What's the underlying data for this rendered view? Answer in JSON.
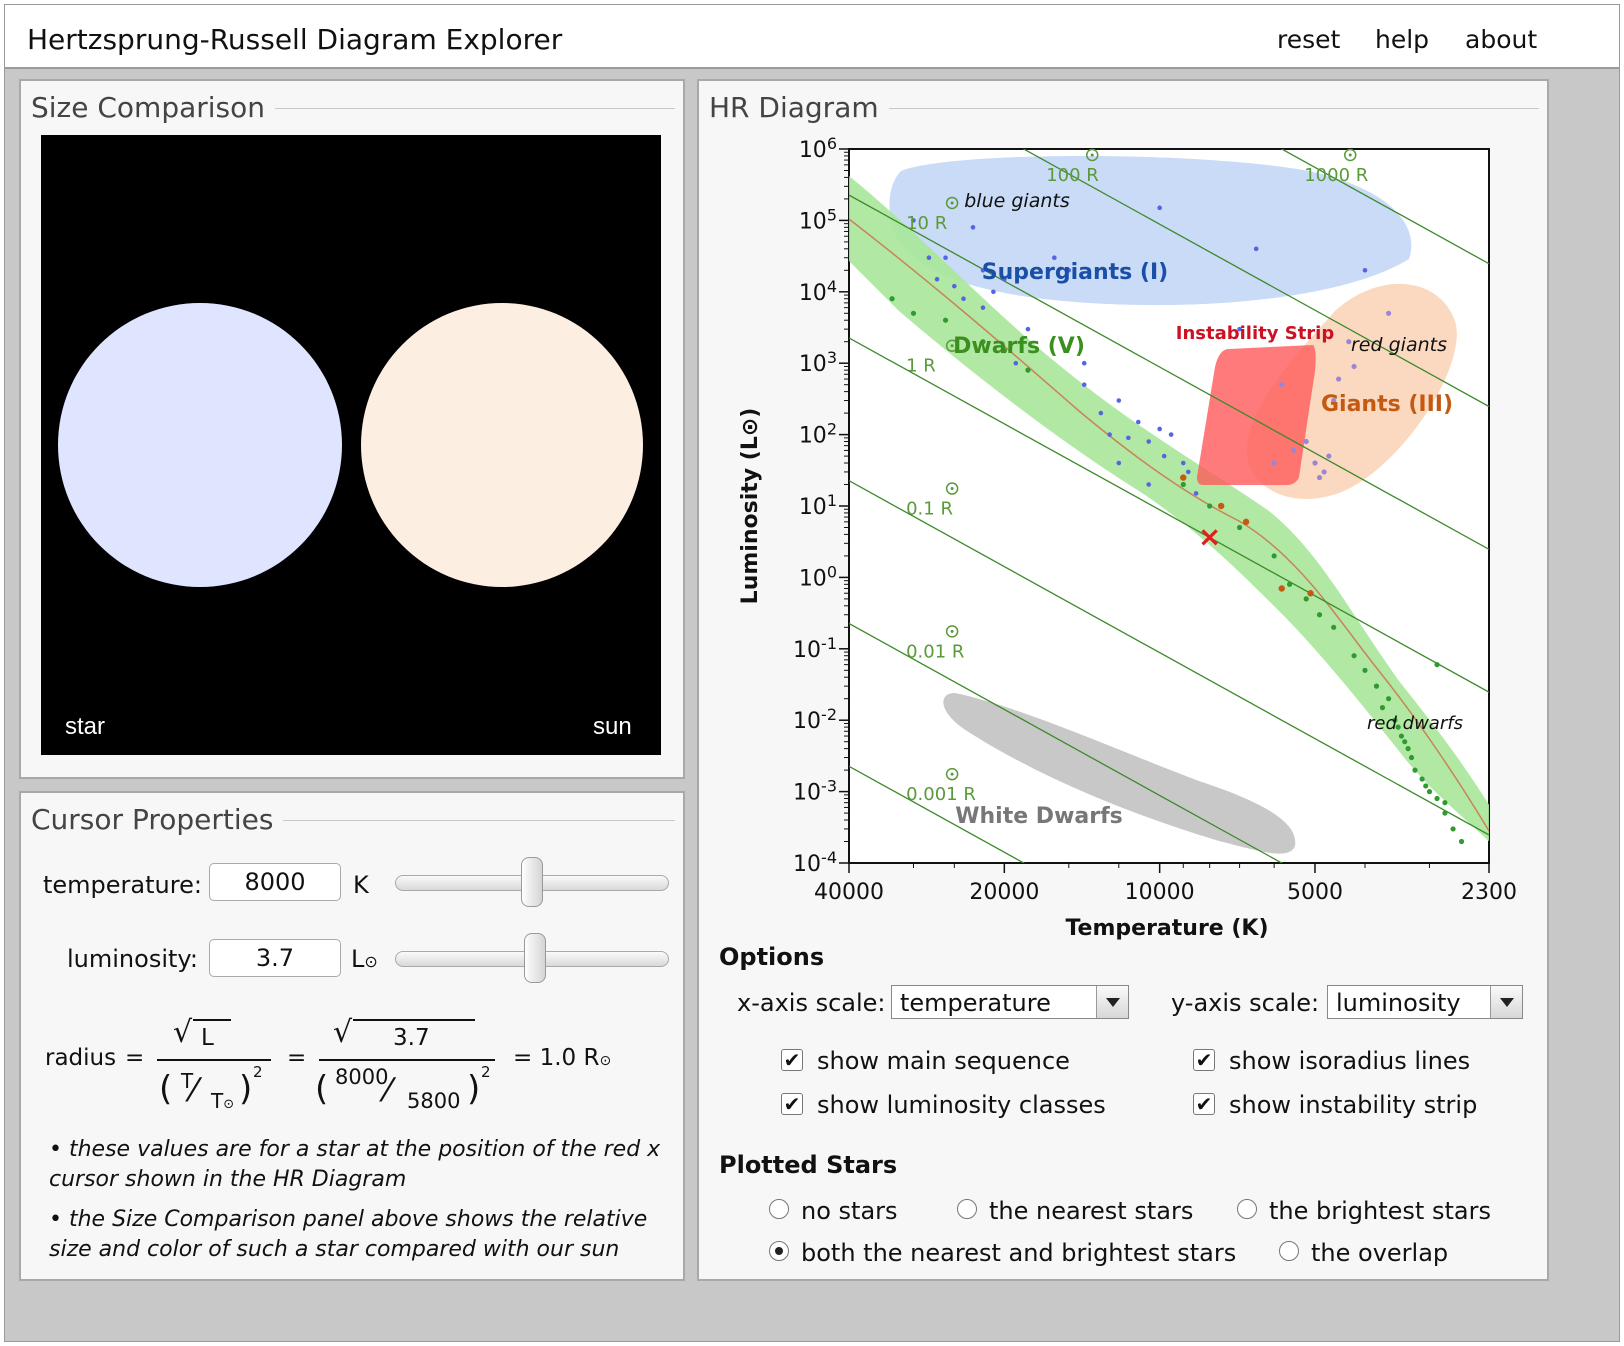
{
  "app": {
    "title": "Hertzsprung-Russell Diagram Explorer",
    "menu": [
      "reset",
      "help",
      "about"
    ]
  },
  "size_panel": {
    "title": "Size Comparison",
    "star_label": "star",
    "sun_label": "sun",
    "star_color": "#dfe4ff",
    "sun_color": "#fdeee2"
  },
  "cursor_panel": {
    "title": "Cursor Properties",
    "temperature_label": "temperature:",
    "temperature_value": "8000",
    "temperature_unit": "K",
    "temperature_slider": 0.5,
    "luminosity_label": "luminosity:",
    "luminosity_value": "3.7",
    "luminosity_unit": "L",
    "sun_symbol": "⊙",
    "luminosity_slider": 0.51,
    "formula": {
      "radius_label": "radius",
      "eq": "=",
      "sqrt_sign": "√",
      "sym_L": "L",
      "sym_T": "T",
      "sym_Tsun": "T",
      "slash": "⁄",
      "lparen": "(",
      "rparen": ")",
      "exp": "2",
      "L_value": "3.7",
      "T_value": "8000",
      "Tsun_value": "5800",
      "result": "= 1.0 R"
    },
    "notes": [
      "• these values are for a star at the position of the red x cursor shown in the HR Diagram",
      "• the Size Comparison panel above shows the relative size and color of such a star compared with our sun"
    ]
  },
  "hr_panel": {
    "title": "HR Diagram",
    "options_title": "Options",
    "x_scale_label": "x-axis scale:",
    "x_scale_value": "temperature",
    "y_scale_label": "y-axis scale:",
    "y_scale_value": "luminosity",
    "checkboxes": [
      {
        "label": "show main sequence",
        "checked": true
      },
      {
        "label": "show isoradius lines",
        "checked": true
      },
      {
        "label": "show luminosity classes",
        "checked": true
      },
      {
        "label": "show instability strip",
        "checked": true
      }
    ],
    "check_mark": "✔",
    "plotted_title": "Plotted Stars",
    "radios": [
      {
        "label": "no stars",
        "selected": false
      },
      {
        "label": "the nearest stars",
        "selected": false
      },
      {
        "label": "the brightest stars",
        "selected": false
      },
      {
        "label": "both the nearest and brightest stars",
        "selected": true
      },
      {
        "label": "the overlap",
        "selected": false
      }
    ]
  },
  "chart_data": {
    "type": "scatter",
    "xlabel": "Temperature (K)",
    "ylabel": "Luminosity (L⊙)",
    "x_scale": "log",
    "x_reversed": true,
    "xlim": [
      40000,
      2300
    ],
    "x_ticks": [
      "40000",
      "20000",
      "10000",
      "5000",
      "2300"
    ],
    "y_scale": "log",
    "ylim_exponent": [
      -4,
      6
    ],
    "y_tick_base": "10",
    "y_tick_exponents": [
      "-4",
      "-3",
      "-2",
      "-1",
      "0",
      "1",
      "2",
      "3",
      "4",
      "5",
      "6"
    ],
    "cursor": {
      "temperature": 8000,
      "luminosity": 3.7,
      "symbol": "×",
      "color": "#e02020"
    },
    "isoradius_lines": [
      {
        "label": "0.001 R",
        "radius": 0.001
      },
      {
        "label": "0.01 R",
        "radius": 0.01
      },
      {
        "label": "0.1 R",
        "radius": 0.1
      },
      {
        "label": "1 R",
        "radius": 1
      },
      {
        "label": "10 R",
        "radius": 10
      },
      {
        "label": "100 R",
        "radius": 100
      },
      {
        "label": "1000 R",
        "radius": 1000
      }
    ],
    "regions": [
      {
        "label": "Supergiants (I)",
        "color": "#1a4fa8"
      },
      {
        "label": "blue giants",
        "color": "#111111"
      },
      {
        "label": "Dwarfs (V)",
        "color": "#3b8f1f"
      },
      {
        "label": "Instability Strip",
        "color": "#cc1122"
      },
      {
        "label": "red giants",
        "color": "#111111"
      },
      {
        "label": "Giants (III)",
        "color": "#c45a12"
      },
      {
        "label": "red dwarfs",
        "color": "#111111"
      },
      {
        "label": "White Dwarfs",
        "color": "#777777"
      }
    ],
    "main_sequence_color": "#7fd96a",
    "stars_blue": [
      [
        30000,
        100000
      ],
      [
        26000,
        30000
      ],
      [
        24000,
        8000
      ],
      [
        22000,
        20000
      ],
      [
        21000,
        10000
      ],
      [
        19000,
        1000
      ],
      [
        23000,
        80000
      ],
      [
        28000,
        30000
      ],
      [
        25000,
        12000
      ],
      [
        27000,
        15000
      ],
      [
        18000,
        3000
      ],
      [
        14000,
        500
      ],
      [
        13000,
        200
      ],
      [
        12000,
        300
      ],
      [
        11000,
        150
      ],
      [
        10500,
        80
      ],
      [
        10000,
        120
      ],
      [
        9500,
        100
      ],
      [
        9000,
        40
      ],
      [
        8800,
        30
      ],
      [
        8500,
        15
      ],
      [
        9800,
        50
      ],
      [
        11500,
        90
      ],
      [
        12500,
        100
      ],
      [
        15000,
        20000
      ],
      [
        10000,
        150000
      ],
      [
        7000,
        3000
      ],
      [
        6500,
        40000
      ],
      [
        4000,
        20000
      ],
      [
        16000,
        30000
      ],
      [
        20000,
        15000
      ],
      [
        22000,
        6000
      ],
      [
        14000,
        1000
      ],
      [
        12000,
        40
      ],
      [
        10500,
        20
      ]
    ],
    "stars_green": [
      [
        33000,
        8000
      ],
      [
        30000,
        5000
      ],
      [
        26000,
        4000
      ],
      [
        22000,
        2000
      ],
      [
        20000,
        1500
      ],
      [
        18000,
        800
      ],
      [
        9000,
        20
      ],
      [
        8000,
        10
      ],
      [
        7000,
        5
      ],
      [
        6000,
        2
      ],
      [
        5600,
        0.8
      ],
      [
        5200,
        0.5
      ],
      [
        4900,
        0.3
      ],
      [
        4600,
        0.2
      ],
      [
        4200,
        0.08
      ],
      [
        4000,
        0.05
      ],
      [
        3800,
        0.03
      ],
      [
        3600,
        0.02
      ],
      [
        3500,
        0.01
      ],
      [
        3400,
        0.006
      ],
      [
        3300,
        0.004
      ],
      [
        3200,
        0.002
      ],
      [
        3100,
        0.0015
      ],
      [
        3000,
        0.001
      ],
      [
        2900,
        0.0008
      ],
      [
        2800,
        0.0005
      ],
      [
        2700,
        0.0003
      ],
      [
        2600,
        0.0002
      ],
      [
        3700,
        0.015
      ],
      [
        3450,
        0.008
      ],
      [
        3250,
        0.003
      ],
      [
        2800,
        0.0007
      ],
      [
        2900,
        0.06
      ],
      [
        3050,
        0.0012
      ],
      [
        3350,
        0.005
      ]
    ],
    "stars_orange": [
      [
        9000,
        25
      ],
      [
        7600,
        10
      ],
      [
        6800,
        6
      ],
      [
        5800,
        0.7
      ],
      [
        5100,
        0.6
      ]
    ],
    "stars_giant": [
      [
        5200,
        80
      ],
      [
        5000,
        40
      ],
      [
        4800,
        30
      ],
      [
        4700,
        50
      ],
      [
        4900,
        25
      ],
      [
        5500,
        60
      ],
      [
        4500,
        600
      ],
      [
        4200,
        900
      ],
      [
        4600,
        300
      ],
      [
        5800,
        500
      ],
      [
        6000,
        40
      ],
      [
        4300,
        2000
      ],
      [
        3600,
        5000
      ]
    ]
  }
}
